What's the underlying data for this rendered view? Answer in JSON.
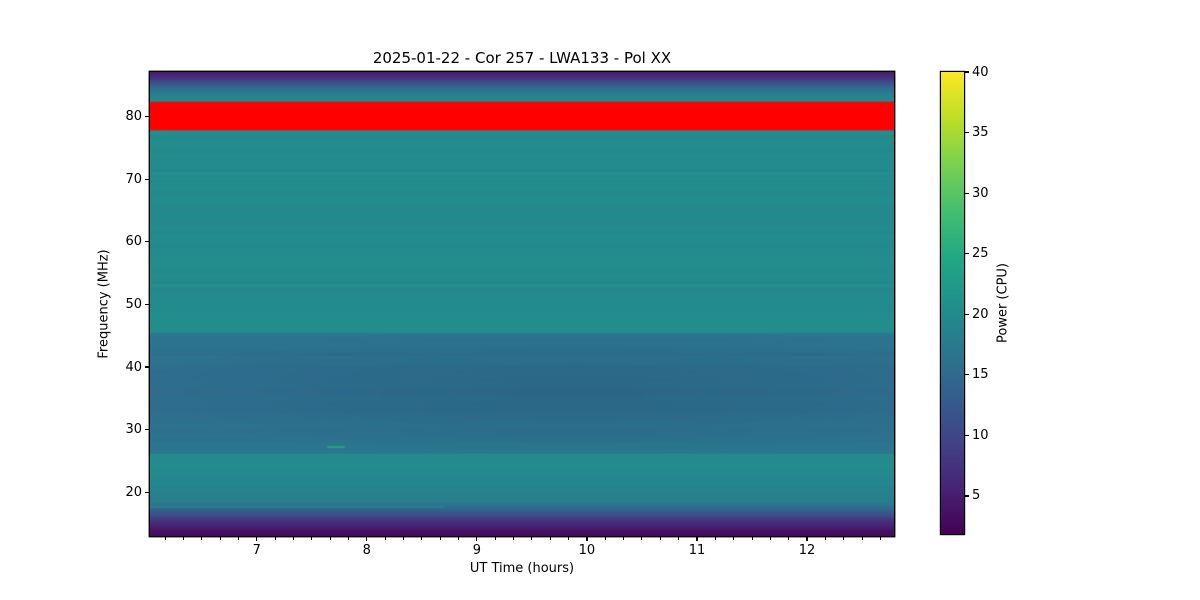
{
  "chart_data": {
    "type": "heatmap",
    "title": "2025-01-22 - Cor 257 - LWA133 - Pol XX",
    "xlabel": "UT Time (hours)",
    "ylabel": "Frequency (MHz)",
    "colorbar_label": "Power (CPU)",
    "colormap": "viridis",
    "x_range_hours": [
      6.03,
      12.79
    ],
    "y_range_mhz": [
      13.0,
      87.15
    ],
    "x_major_ticks": [
      7,
      8,
      9,
      10,
      11,
      12
    ],
    "x_minor_ticks_per_hour": 6,
    "y_major_ticks": [
      20,
      30,
      40,
      50,
      60,
      70,
      80
    ],
    "colorbar_ticks": [
      5,
      10,
      15,
      20,
      25,
      30,
      35,
      40
    ],
    "colorbar_range": [
      1.86,
      40
    ],
    "grid": false,
    "legend": "none",
    "flagged_band_mhz": [
      77.85,
      82.4
    ],
    "flagged_band_color": "#ff0000",
    "spectrum_profile_freq_power": [
      [
        13.0,
        3.2
      ],
      [
        14.0,
        4.3
      ],
      [
        15.0,
        6.2
      ],
      [
        15.9,
        8.8
      ],
      [
        16.8,
        12.3
      ],
      [
        17.6,
        15.6
      ],
      [
        18.4,
        17.9
      ],
      [
        19.6,
        18.7
      ],
      [
        21.5,
        19.4
      ],
      [
        23.5,
        19.8
      ],
      [
        26.0,
        20.1
      ],
      [
        26.35,
        16.8
      ],
      [
        28.5,
        16.4
      ],
      [
        31.0,
        16.0
      ],
      [
        34.0,
        15.6
      ],
      [
        37.0,
        15.6
      ],
      [
        40.0,
        15.9
      ],
      [
        43.0,
        16.2
      ],
      [
        45.3,
        16.5
      ],
      [
        45.55,
        20.4
      ],
      [
        48.5,
        20.2
      ],
      [
        52.0,
        19.9
      ],
      [
        56.0,
        20.0
      ],
      [
        60.0,
        19.8
      ],
      [
        64.0,
        19.9
      ],
      [
        68.0,
        19.9
      ],
      [
        72.0,
        20.0
      ],
      [
        76.0,
        20.1
      ],
      [
        77.85,
        20.1
      ],
      [
        82.4,
        20.0
      ],
      [
        83.1,
        19.5
      ],
      [
        83.8,
        18.2
      ],
      [
        84.5,
        15.6
      ],
      [
        85.2,
        12.0
      ],
      [
        86.0,
        8.5
      ],
      [
        86.6,
        6.2
      ],
      [
        87.15,
        4.3
      ]
    ],
    "stripe_period_mhz": 0.72,
    "stripe_amplitude_power": 0.35,
    "time_dip": {
      "time_center": 9.9,
      "freq_band": [
        26.35,
        45.3
      ],
      "alpha": 0.09
    },
    "artifacts": [
      {
        "freq_mhz": 27.2,
        "time_start": 7.64,
        "time_end": 7.8,
        "power": 24.0,
        "thickness_px": 2
      },
      {
        "freq_mhz": 17.7,
        "time_start": 6.03,
        "time_end": 8.7,
        "power": 18.5,
        "thickness_px": 2
      },
      {
        "freq_mhz": 15.4,
        "time_start": 6.03,
        "time_end": 12.79,
        "power": 7.6,
        "thickness_px": 2
      }
    ]
  }
}
